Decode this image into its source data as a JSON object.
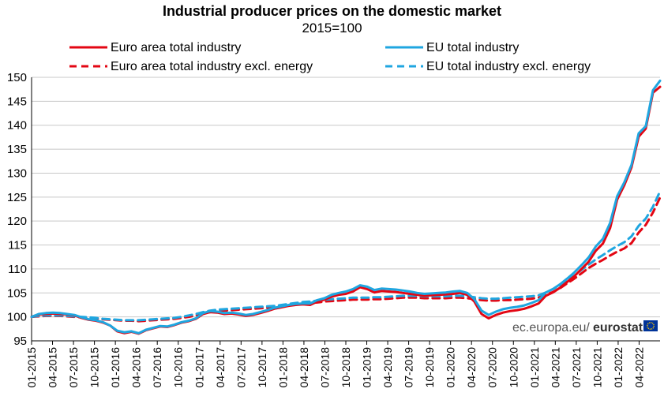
{
  "chart_data": {
    "type": "line",
    "title": "Industrial producer prices on the domestic market",
    "subtitle": "2015=100",
    "xlabel": "",
    "ylabel": "",
    "ylim": [
      95,
      150
    ],
    "yticks": [
      95,
      100,
      105,
      110,
      115,
      120,
      125,
      130,
      135,
      140,
      145,
      150
    ],
    "xtick_labels": [
      "01-2015",
      "04-2015",
      "07-2015",
      "10-2015",
      "01-2016",
      "04-2016",
      "07-2016",
      "10-2016",
      "01-2017",
      "04-2017",
      "07-2017",
      "10-2017",
      "01-2018",
      "04-2018",
      "07-2018",
      "10-2018",
      "01-2019",
      "04-2019",
      "07-2019",
      "10-2019",
      "01-2020",
      "04-2020",
      "07-2020",
      "10-2020",
      "01-2021",
      "04-2021",
      "07-2021",
      "10-2021",
      "01-2022",
      "04-2022"
    ],
    "legend": [
      {
        "name": "Euro area total industry",
        "color": "#e30613",
        "dash": false
      },
      {
        "name": "EU total industry",
        "color": "#1fa6e0",
        "dash": false
      },
      {
        "name": "Euro area total industry excl. energy",
        "color": "#e30613",
        "dash": true
      },
      {
        "name": "EU total industry excl. energy",
        "color": "#1fa6e0",
        "dash": true
      }
    ],
    "series": [
      {
        "name": "Euro area total industry",
        "color": "#e30613",
        "dash": false,
        "values": [
          100,
          100.5,
          100.6,
          100.7,
          100.6,
          100.5,
          100.3,
          99.8,
          99.4,
          99.2,
          98.8,
          98.2,
          97.0,
          96.6,
          96.9,
          96.5,
          97.2,
          97.6,
          98.0,
          97.9,
          98.3,
          98.8,
          99.1,
          99.6,
          100.6,
          101.0,
          100.9,
          100.6,
          100.7,
          100.5,
          100.2,
          100.4,
          100.8,
          101.2,
          101.7,
          102.0,
          102.3,
          102.5,
          102.6,
          102.5,
          103.2,
          103.6,
          104.2,
          104.6,
          104.8,
          105.3,
          106.2,
          105.8,
          105.1,
          105.4,
          105.3,
          105.2,
          105.0,
          104.8,
          104.6,
          104.4,
          104.5,
          104.6,
          104.7,
          104.8,
          105.0,
          104.6,
          103.2,
          100.6,
          99.7,
          100.4,
          100.9,
          101.2,
          101.4,
          101.7,
          102.2,
          102.8,
          104.4,
          105.1,
          106.1,
          107.3,
          108.5,
          110.0,
          111.5,
          113.8,
          115.3,
          118.5,
          124.5,
          127.5,
          131.2,
          137.6,
          139.3,
          146.8,
          148.0
        ]
      },
      {
        "name": "EU total industry",
        "color": "#1fa6e0",
        "dash": false,
        "values": [
          100,
          100.6,
          100.8,
          100.9,
          100.8,
          100.6,
          100.4,
          99.9,
          99.5,
          99.3,
          98.9,
          98.2,
          97.1,
          96.8,
          97.0,
          96.6,
          97.3,
          97.7,
          98.1,
          98.0,
          98.4,
          98.9,
          99.2,
          99.7,
          100.8,
          101.2,
          101.1,
          100.8,
          100.9,
          100.7,
          100.4,
          100.6,
          101.0,
          101.4,
          101.9,
          102.2,
          102.5,
          102.7,
          102.8,
          102.8,
          103.5,
          103.9,
          104.6,
          105.0,
          105.3,
          105.8,
          106.6,
          106.3,
          105.6,
          105.9,
          105.8,
          105.7,
          105.5,
          105.3,
          105.0,
          104.8,
          104.9,
          105.0,
          105.1,
          105.3,
          105.4,
          105.0,
          103.7,
          101.3,
          100.4,
          101.1,
          101.6,
          101.9,
          102.1,
          102.4,
          102.9,
          103.5,
          105.1,
          105.8,
          106.8,
          108.0,
          109.3,
          110.8,
          112.4,
          114.7,
          116.3,
          119.6,
          125.2,
          128.1,
          131.7,
          138.3,
          139.8,
          147.3,
          149.3
        ]
      },
      {
        "name": "Euro area total industry excl. energy",
        "color": "#e30613",
        "dash": true,
        "values": [
          100,
          100.1,
          100.2,
          100.2,
          100.2,
          100.1,
          100.0,
          99.9,
          99.8,
          99.7,
          99.5,
          99.4,
          99.3,
          99.2,
          99.2,
          99.1,
          99.2,
          99.3,
          99.4,
          99.5,
          99.6,
          99.8,
          100.0,
          100.3,
          100.7,
          101.0,
          101.2,
          101.3,
          101.4,
          101.5,
          101.6,
          101.7,
          101.8,
          101.9,
          102.0,
          102.2,
          102.4,
          102.6,
          102.8,
          102.9,
          103.0,
          103.2,
          103.3,
          103.4,
          103.5,
          103.6,
          103.6,
          103.6,
          103.7,
          103.7,
          103.8,
          103.9,
          104.0,
          104.0,
          104.0,
          103.9,
          103.9,
          103.9,
          103.9,
          104.0,
          104.0,
          103.9,
          103.7,
          103.5,
          103.4,
          103.4,
          103.5,
          103.5,
          103.6,
          103.7,
          103.8,
          104.0,
          104.6,
          105.2,
          106.0,
          107.0,
          108.0,
          109.1,
          110.2,
          111.1,
          111.9,
          112.8,
          113.6,
          114.3,
          115.4,
          117.6,
          119.2,
          121.8,
          124.9
        ]
      },
      {
        "name": "EU total industry excl. energy",
        "color": "#1fa6e0",
        "dash": true,
        "values": [
          100,
          100.2,
          100.3,
          100.3,
          100.3,
          100.2,
          100.1,
          100.0,
          99.9,
          99.8,
          99.6,
          99.5,
          99.4,
          99.3,
          99.3,
          99.3,
          99.4,
          99.5,
          99.6,
          99.7,
          99.8,
          100.0,
          100.3,
          100.6,
          101.0,
          101.3,
          101.5,
          101.6,
          101.7,
          101.8,
          101.9,
          102.0,
          102.1,
          102.2,
          102.3,
          102.5,
          102.7,
          102.9,
          103.1,
          103.2,
          103.4,
          103.6,
          103.7,
          103.8,
          103.9,
          104.0,
          104.0,
          104.0,
          104.1,
          104.1,
          104.2,
          104.3,
          104.4,
          104.4,
          104.4,
          104.3,
          104.3,
          104.3,
          104.3,
          104.4,
          104.4,
          104.3,
          104.1,
          103.9,
          103.8,
          103.8,
          103.9,
          104.0,
          104.1,
          104.2,
          104.3,
          104.5,
          105.1,
          105.8,
          106.6,
          107.6,
          108.6,
          109.8,
          110.9,
          112.0,
          112.9,
          113.9,
          114.8,
          115.6,
          116.8,
          119.0,
          120.5,
          123.0,
          126.2
        ]
      }
    ],
    "source_text": "ec.europa.eu/",
    "source_brand": "eurostat"
  },
  "flag_icon": "eu-flag-icon"
}
